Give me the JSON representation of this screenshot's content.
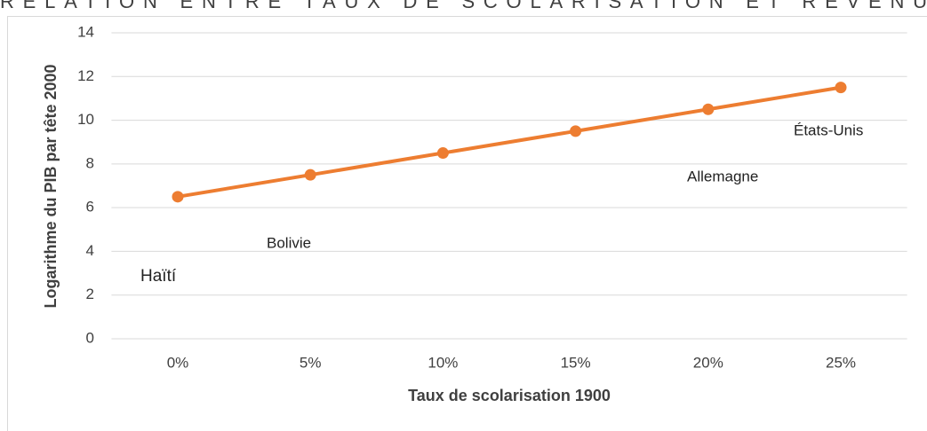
{
  "chart_data": {
    "type": "line",
    "title": "RELATION ENTRE TAUX DE SCOLARISATION ET REVENU",
    "x_label": "Taux de scolarisation 1900",
    "y_label": "Logarithme du PIB par tête 2000",
    "categories": [
      "0%",
      "5%",
      "10%",
      "15%",
      "20%",
      "25%"
    ],
    "series": [
      {
        "name": null,
        "color": "#ED7D31",
        "values": [
          6.5,
          7.5,
          8.5,
          9.5,
          10.5,
          11.5
        ]
      }
    ],
    "ylim": [
      0,
      14
    ],
    "yticks": [
      0,
      2,
      4,
      6,
      8,
      10,
      12,
      14
    ],
    "grid": true,
    "annotations": [
      "Haïtí",
      "Bolivie",
      "Allemagne",
      "États-Unis"
    ]
  }
}
